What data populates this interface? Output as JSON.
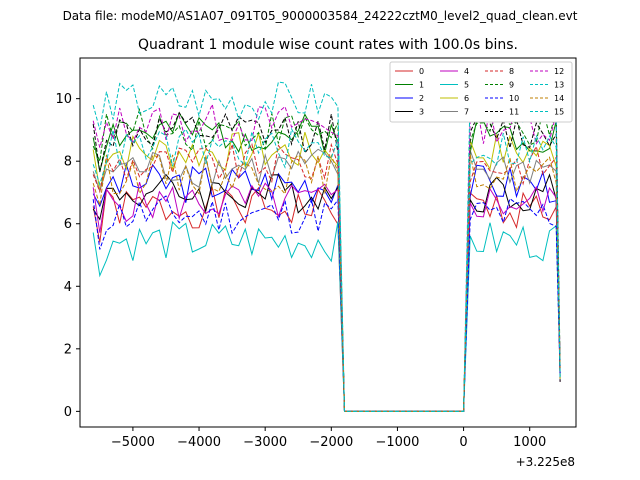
{
  "figure": {
    "suptitle": "Data file: modeM0/AS1A07_091T05_9000003584_24222cztM0_level2_quad_clean.evt"
  },
  "chart_data": {
    "type": "line",
    "title": "Quadrant 1 module wise count rates with 100.0s bins.",
    "xlabel": "",
    "ylabel": "",
    "x_offset_label": "+3.225e8",
    "xlim": [
      -5800,
      1700
    ],
    "ylim": [
      -0.5,
      11.3
    ],
    "xticks": [
      -5000,
      -4000,
      -3000,
      -2000,
      -1000,
      0,
      1000
    ],
    "xtick_labels": [
      "−5000",
      "−4000",
      "−3000",
      "−2000",
      "−1000",
      "0",
      "1000"
    ],
    "yticks": [
      0,
      2,
      4,
      6,
      8,
      10
    ],
    "ytick_labels": [
      "0",
      "2",
      "4",
      "6",
      "8",
      "10"
    ],
    "grid": false,
    "legend_position": "top-right",
    "legend_ncol": 4,
    "segments": [
      {
        "x_start": -5600,
        "x_end": -1900,
        "step": 100
      },
      {
        "x_start": -1800,
        "x_end": 0,
        "step": 100
      },
      {
        "x_start": 100,
        "x_end": 1400,
        "step": 100
      },
      {
        "x_start": 1460,
        "x_end": 1460,
        "step": 100
      }
    ],
    "series": [
      {
        "name": "0",
        "color": "#d62728",
        "dash": false,
        "base": 6.5,
        "seed": 1
      },
      {
        "name": "1",
        "color": "#008000",
        "dash": false,
        "base": 8.9,
        "seed": 2
      },
      {
        "name": "2",
        "color": "#0000ff",
        "dash": false,
        "base": 7.3,
        "seed": 3
      },
      {
        "name": "3",
        "color": "#000000",
        "dash": false,
        "base": 7.0,
        "seed": 4
      },
      {
        "name": "4",
        "color": "#bf00bf",
        "dash": false,
        "base": 6.7,
        "seed": 5
      },
      {
        "name": "5",
        "color": "#00bfbf",
        "dash": false,
        "base": 5.45,
        "seed": 6
      },
      {
        "name": "6",
        "color": "#bfbf00",
        "dash": false,
        "base": 8.3,
        "seed": 7
      },
      {
        "name": "7",
        "color": "#808080",
        "dash": false,
        "base": 7.8,
        "seed": 8
      },
      {
        "name": "8",
        "color": "#d62728",
        "dash": true,
        "base": 7.9,
        "seed": 9
      },
      {
        "name": "9",
        "color": "#008000",
        "dash": true,
        "base": 9.0,
        "seed": 10
      },
      {
        "name": "10",
        "color": "#0000ff",
        "dash": true,
        "base": 6.3,
        "seed": 11
      },
      {
        "name": "11",
        "color": "#000000",
        "dash": true,
        "base": 8.9,
        "seed": 12
      },
      {
        "name": "12",
        "color": "#bf00bf",
        "dash": true,
        "base": 9.2,
        "seed": 13
      },
      {
        "name": "13",
        "color": "#00bfbf",
        "dash": true,
        "base": 9.9,
        "seed": 14
      },
      {
        "name": "14",
        "color": "#bf7f00",
        "dash": true,
        "base": 7.6,
        "seed": 15
      },
      {
        "name": "15",
        "color": "#00bfbf",
        "dash": true,
        "base": 8.4,
        "seed": 16
      }
    ]
  }
}
